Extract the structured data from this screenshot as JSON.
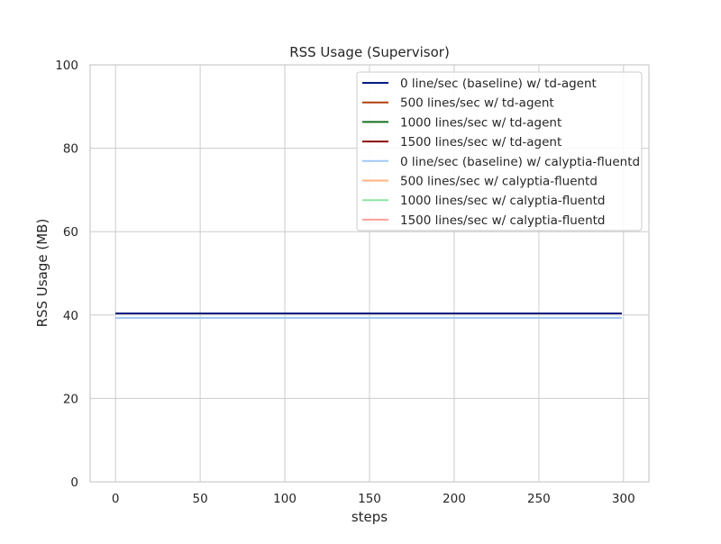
{
  "chart_data": {
    "type": "line",
    "title": "RSS Usage (Supervisor)",
    "xlabel": "steps",
    "ylabel": "RSS Usage (MB)",
    "xlim": [
      -15,
      315
    ],
    "ylim": [
      0,
      100
    ],
    "xticks": [
      0,
      50,
      100,
      150,
      200,
      250,
      300
    ],
    "yticks": [
      0,
      20,
      40,
      60,
      80,
      100
    ],
    "grid": true,
    "legend_position": "top-right",
    "x": [
      0,
      299
    ],
    "series": [
      {
        "name": "0 line/sec (baseline) w/ td-agent",
        "color": "#001c7f",
        "values": [
          40.4,
          40.4
        ]
      },
      {
        "name": "500 lines/sec w/ td-agent",
        "color": "#b1400d",
        "values": [
          40.4,
          40.4
        ]
      },
      {
        "name": "1000 lines/sec w/ td-agent",
        "color": "#12711c",
        "values": [
          40.4,
          40.4
        ]
      },
      {
        "name": "1500 lines/sec w/ td-agent",
        "color": "#8c0800",
        "values": [
          40.4,
          40.4
        ]
      },
      {
        "name": "0 line/sec (baseline) w/ calyptia-fluentd",
        "color": "#a1c9f4",
        "values": [
          39.3,
          39.3
        ]
      },
      {
        "name": "500 lines/sec w/ calyptia-fluentd",
        "color": "#ffb482",
        "values": [
          39.3,
          39.3
        ]
      },
      {
        "name": "1000 lines/sec w/ calyptia-fluentd",
        "color": "#8de5a1",
        "values": [
          39.3,
          39.3
        ]
      },
      {
        "name": "1500 lines/sec w/ calyptia-fluentd",
        "color": "#ff9f9b",
        "values": [
          39.3,
          39.3
        ]
      }
    ]
  }
}
